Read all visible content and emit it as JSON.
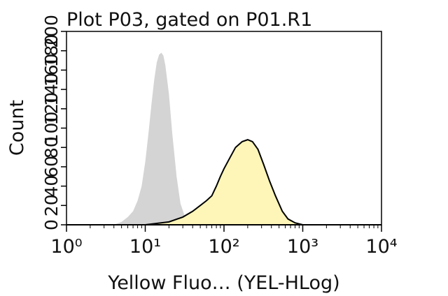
{
  "chart_data": {
    "type": "area",
    "title": "Plot P03, gated on P01.R1",
    "x_label": "Yellow Fluo… (YEL-HLog)",
    "y_label": "Count",
    "xscale": "log",
    "xlim": [
      1,
      10000
    ],
    "xticks": [
      {
        "value": 1,
        "label": "10⁰"
      },
      {
        "value": 10,
        "label": "10¹"
      },
      {
        "value": 100,
        "label": "10²"
      },
      {
        "value": 1000,
        "label": "10³"
      },
      {
        "value": 10000,
        "label": "10⁴"
      }
    ],
    "xminorticks": [
      2,
      3,
      4,
      5,
      6,
      7,
      8,
      9,
      20,
      30,
      40,
      50,
      60,
      70,
      80,
      90,
      200,
      300,
      400,
      500,
      600,
      700,
      800,
      900,
      2000,
      3000,
      4000,
      5000,
      6000,
      7000,
      8000,
      9000
    ],
    "ylim": [
      0,
      200
    ],
    "yticks": [
      0,
      20,
      40,
      60,
      80,
      100,
      120,
      140,
      160,
      180,
      200
    ],
    "series": [
      {
        "color": "#d4d4d4",
        "x": [
          4,
          5,
          6,
          7,
          8,
          9,
          10,
          11,
          12,
          13,
          14,
          15,
          16,
          17,
          18,
          20,
          22,
          25,
          28,
          32,
          38,
          45
        ],
        "values": [
          0,
          3,
          8,
          14,
          25,
          40,
          65,
          95,
          125,
          150,
          168,
          176,
          178,
          175,
          165,
          135,
          95,
          50,
          22,
          8,
          2,
          0
        ]
      },
      {
        "color": "#fdf6b8",
        "line_color": "#000000",
        "x": [
          1,
          10,
          20,
          30,
          40,
          50,
          60,
          70,
          80,
          90,
          100,
          120,
          140,
          170,
          200,
          230,
          270,
          320,
          380,
          450,
          550,
          650,
          800,
          1000,
          10000
        ],
        "values": [
          0,
          0,
          3,
          8,
          14,
          20,
          25,
          30,
          40,
          50,
          58,
          70,
          80,
          86,
          88,
          86,
          78,
          62,
          45,
          30,
          14,
          6,
          2,
          0,
          0
        ]
      }
    ]
  }
}
